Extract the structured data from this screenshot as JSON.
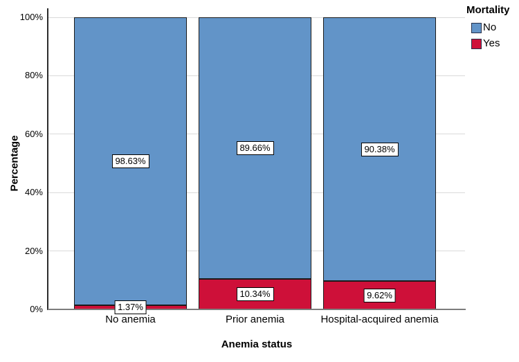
{
  "chart_data": {
    "type": "bar",
    "stacked": true,
    "orientation": "vertical",
    "xlabel": "Anemia status",
    "ylabel": "Percentage",
    "categories": [
      "No anemia",
      "Prior anemia",
      "Hospital-acquired anemia"
    ],
    "series": [
      {
        "name": "No",
        "color": "#6294c8",
        "values": [
          98.63,
          89.66,
          90.38
        ],
        "labels": [
          "98.63%",
          "89.66%",
          "90.38%"
        ]
      },
      {
        "name": "Yes",
        "color": "#ce1039",
        "values": [
          1.37,
          10.34,
          9.62
        ],
        "labels": [
          "1.37%",
          "10.34%",
          "9.62%"
        ]
      }
    ],
    "stack_order_bottom_to_top": [
      "Yes",
      "No"
    ],
    "ylim": [
      0,
      100
    ],
    "ytick_values": [
      0,
      20,
      40,
      60,
      80,
      100
    ],
    "ytick_labels": [
      "0%",
      "20%",
      "40%",
      "60%",
      "80%",
      "100%"
    ],
    "grid": true,
    "gridline_color": "#d9d9d9",
    "legend": {
      "title": "Mortality",
      "position": "top-right"
    }
  }
}
